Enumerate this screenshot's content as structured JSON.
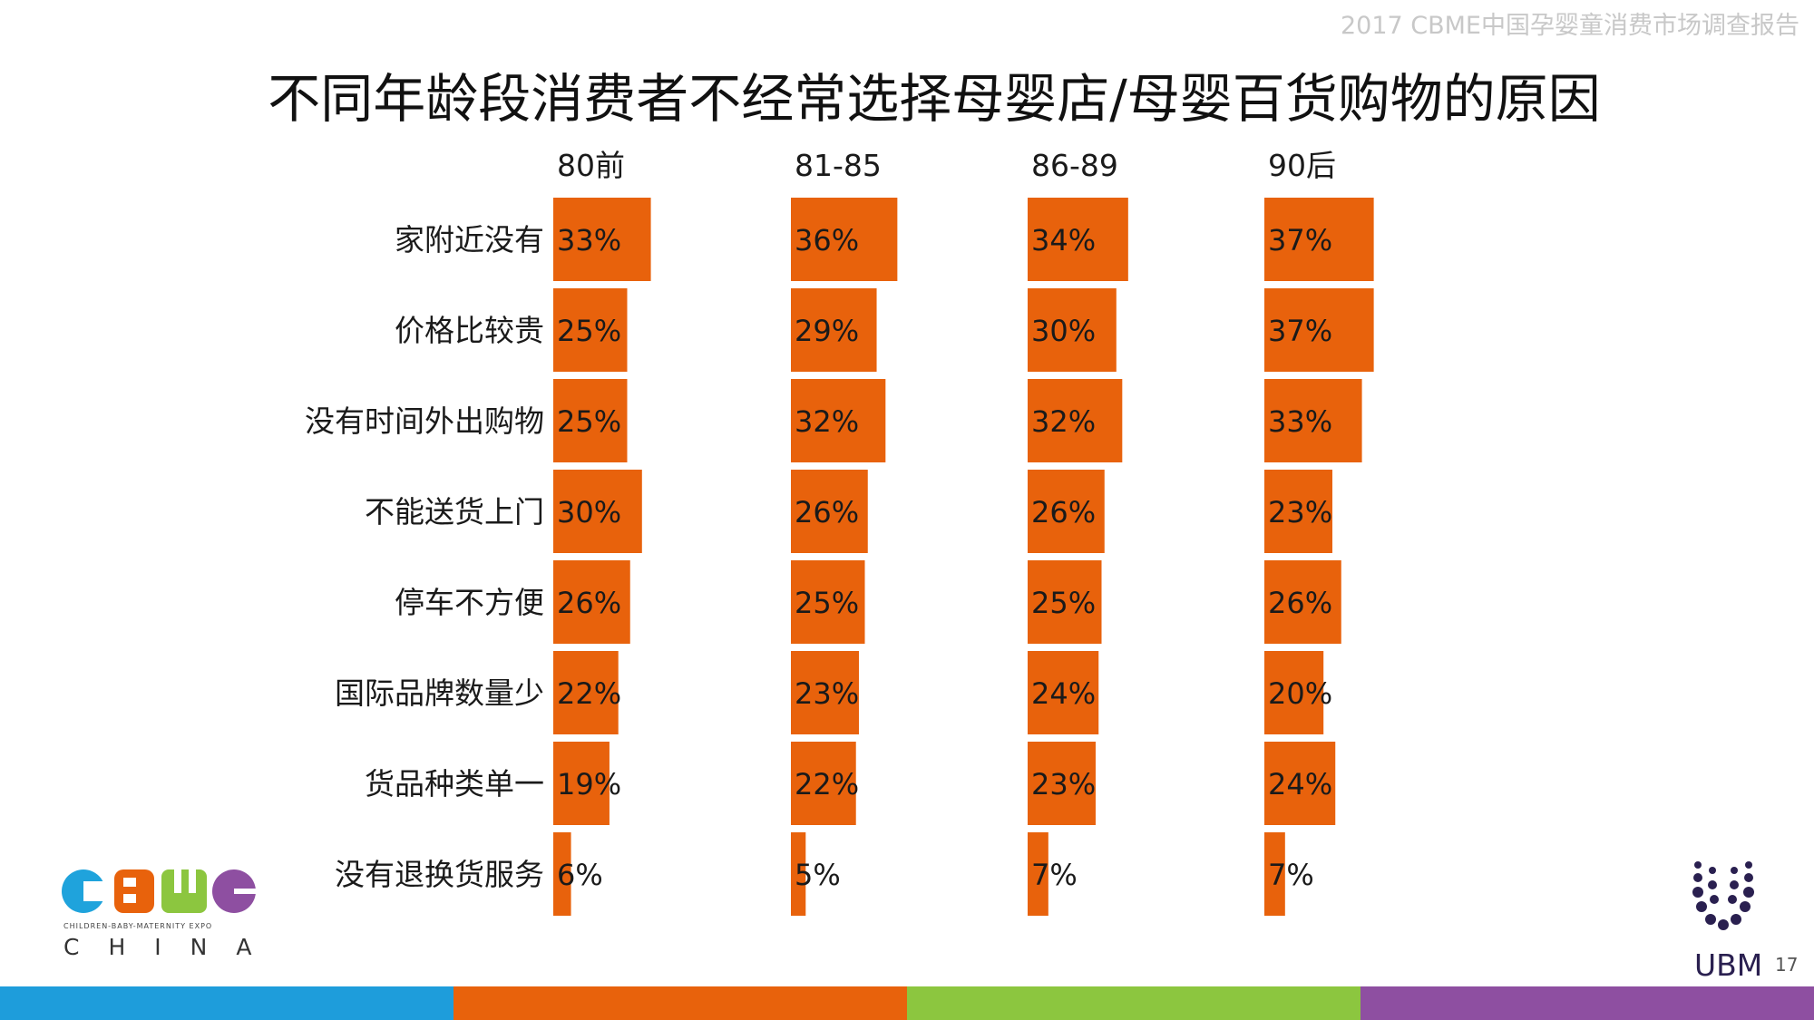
{
  "header": {
    "report_name": "2017 CBME中国孕婴童消费市场调查报告"
  },
  "title": "不同年龄段消费者不经常选择母婴店/母婴百货购物的原因",
  "chart_data": {
    "type": "bar",
    "orientation": "horizontal",
    "categories": [
      "家附近没有",
      "价格比较贵",
      "没有时间外出购物",
      "不能送货上门",
      "停车不方便",
      "国际品牌数量少",
      "货品种类单一",
      "没有退换货服务"
    ],
    "series": [
      {
        "name": "80前",
        "values": [
          33,
          25,
          25,
          30,
          26,
          22,
          19,
          6
        ]
      },
      {
        "name": "81-85",
        "values": [
          36,
          29,
          32,
          26,
          25,
          23,
          22,
          5
        ]
      },
      {
        "name": "86-89",
        "values": [
          34,
          30,
          32,
          26,
          25,
          24,
          23,
          7
        ]
      },
      {
        "name": "90后",
        "values": [
          37,
          37,
          33,
          23,
          26,
          20,
          24,
          7
        ]
      }
    ],
    "value_suffix": "%",
    "xlim": [
      0,
      100
    ],
    "grid": false,
    "legend": "none",
    "bar_color": "#e8620c"
  },
  "logos": {
    "cbme": {
      "tagline": "CHILDREN-BABY-MATERNITY EXPO",
      "region": "CHINA",
      "colors": [
        "#1fa3dc",
        "#e8620c",
        "#8cc63f",
        "#8e4fa1"
      ]
    },
    "ubm": {
      "name": "UBM",
      "color": "#2a2050"
    }
  },
  "page_number": "17",
  "footer_colors": [
    "#1e9ddb",
    "#e8620c",
    "#8cc63f",
    "#8e4fa1"
  ]
}
